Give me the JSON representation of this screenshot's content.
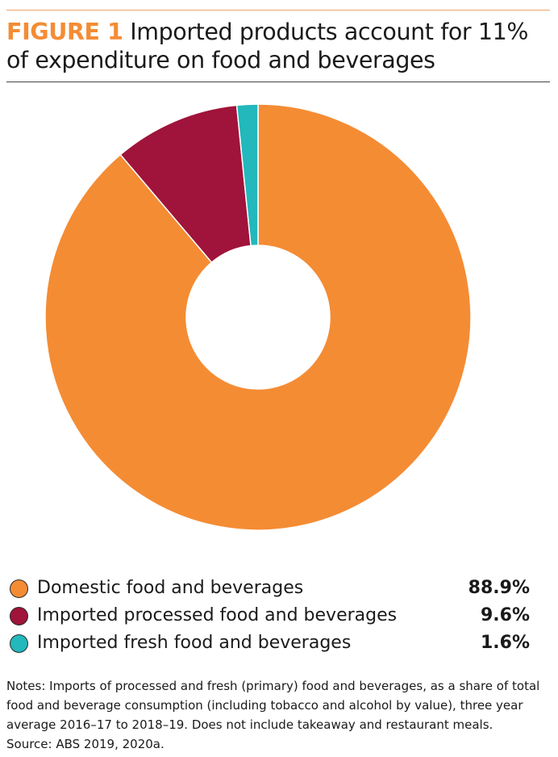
{
  "figure": {
    "label": "FIGURE 1",
    "title": " Imported products account for 11% of expenditure on food and beverages"
  },
  "chart_data": {
    "type": "pie",
    "donut": true,
    "categories": [
      "Domestic food and beverages",
      "Imported processed food and beverages",
      "Imported fresh food and beverages"
    ],
    "values": [
      88.9,
      9.6,
      1.6
    ],
    "value_labels": [
      "88.9%",
      "9.6%",
      "1.6%"
    ],
    "colors": [
      "#f48c34",
      "#a0133a",
      "#22b8bc"
    ],
    "legend_position": "bottom"
  },
  "notes": {
    "text": "Notes: Imports of processed and fresh (primary) food and beverages, as a share of total food and beverage consumption (including tobacco and alcohol by value), three year average 2016–17 to 2018–19. Does not include takeaway and restaurant meals.",
    "source": "Source: ABS 2019, 2020a."
  }
}
